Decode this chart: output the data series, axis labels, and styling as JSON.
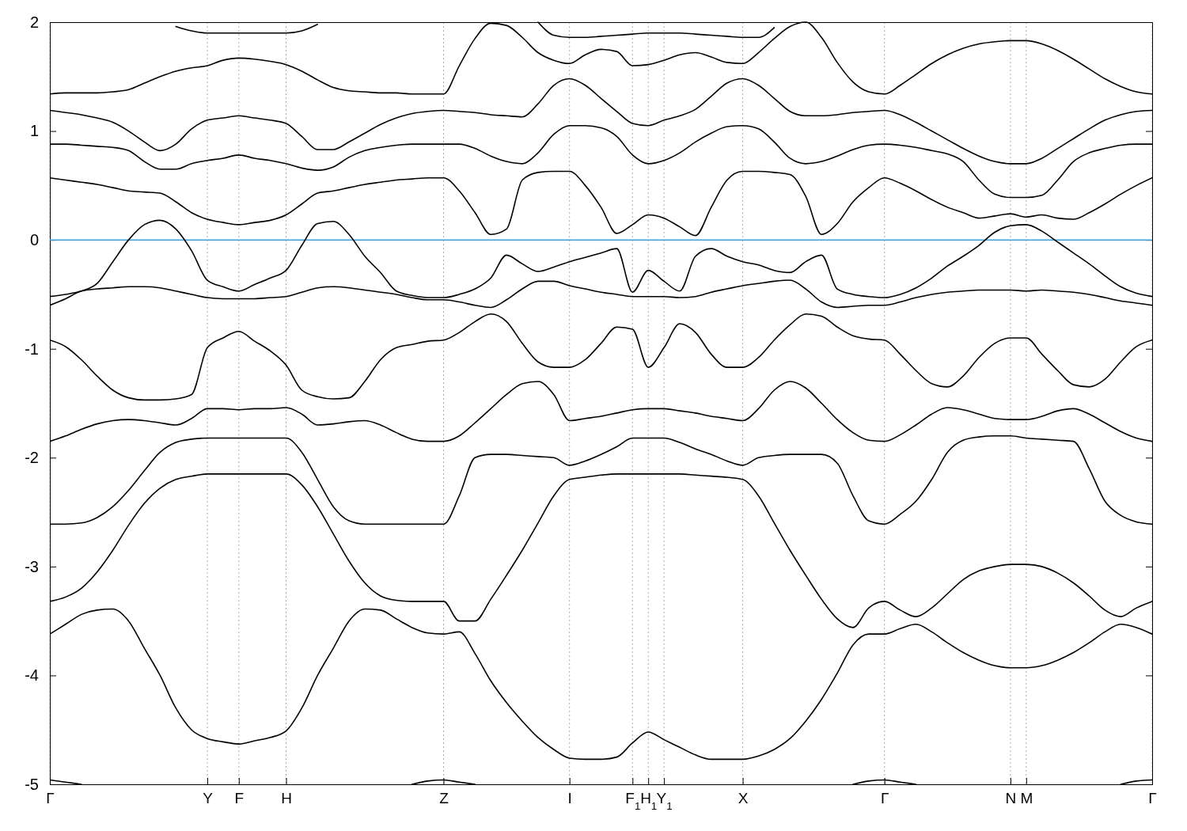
{
  "chart_data": {
    "type": "line",
    "ylim": [
      -5,
      2
    ],
    "yticks": [
      -5,
      -4,
      -3,
      -2,
      -1,
      0,
      1,
      2
    ],
    "categories": [
      "Γ",
      null,
      null,
      null,
      null,
      null,
      null,
      null,
      null,
      null,
      "Y",
      null,
      "F",
      null,
      null,
      "H",
      null,
      null,
      null,
      null,
      null,
      null,
      null,
      null,
      null,
      "Z",
      null,
      null,
      null,
      null,
      null,
      null,
      null,
      "I",
      null,
      null,
      null,
      "F$_{1}$",
      "H$_{1}$",
      "Y$_{1}$",
      null,
      null,
      null,
      null,
      "X",
      null,
      null,
      null,
      null,
      null,
      null,
      null,
      null,
      "Γ",
      null,
      null,
      null,
      null,
      null,
      null,
      null,
      "N",
      "M",
      null,
      null,
      null,
      null,
      null,
      null,
      null,
      "Γ"
    ],
    "grid": "x",
    "marker": "none",
    "line_style": "solid",
    "ref_lines": [
      {
        "axis": "y",
        "value": 0,
        "color": "#3d9fd6"
      }
    ],
    "series": [
      {
        "color": "#000000",
        "values": [
          -4.96,
          -4.98,
          -5.0,
          null,
          null,
          null,
          null,
          null,
          null,
          null,
          null,
          null,
          null,
          null,
          null,
          null,
          null,
          null,
          null,
          null,
          null,
          null,
          null,
          -5.0,
          -4.97,
          -4.96,
          -4.98,
          -5.0,
          null,
          null,
          null,
          null,
          null,
          null,
          null,
          null,
          null,
          null,
          null,
          null,
          null,
          null,
          null,
          null,
          null,
          null,
          null,
          null,
          null,
          null,
          null,
          -5.0,
          -4.97,
          -4.96,
          -4.98,
          -5.0,
          null,
          null,
          null,
          null,
          null,
          null,
          null,
          null,
          null,
          null,
          null,
          null,
          -5.0,
          -4.97,
          -4.96
        ]
      },
      {
        "color": "#000000",
        "values": [
          -3.62,
          -3.53,
          -3.44,
          -3.4,
          -3.39,
          -3.5,
          -3.75,
          -4.0,
          -4.3,
          -4.5,
          -4.58,
          -4.61,
          -4.63,
          -4.6,
          -4.57,
          -4.51,
          -4.3,
          -4.0,
          -3.75,
          -3.5,
          -3.39,
          -3.4,
          -3.48,
          -3.56,
          -3.61,
          -3.62,
          -3.6,
          -3.8,
          -4.05,
          -4.25,
          -4.42,
          -4.57,
          -4.68,
          -4.76,
          -4.77,
          -4.77,
          -4.75,
          -4.62,
          -4.52,
          -4.59,
          -4.66,
          -4.73,
          -4.77,
          -4.77,
          -4.77,
          -4.74,
          -4.68,
          -4.58,
          -4.42,
          -4.22,
          -3.98,
          -3.72,
          -3.62,
          -3.62,
          -3.57,
          -3.53,
          -3.6,
          -3.7,
          -3.79,
          -3.86,
          -3.91,
          -3.93,
          -3.93,
          -3.91,
          -3.86,
          -3.79,
          -3.7,
          -3.6,
          -3.53,
          -3.56,
          -3.62
        ]
      },
      {
        "color": "#000000",
        "values": [
          -3.32,
          -3.28,
          -3.2,
          -3.05,
          -2.85,
          -2.62,
          -2.42,
          -2.28,
          -2.2,
          -2.17,
          -2.15,
          -2.15,
          -2.15,
          -2.15,
          -2.15,
          -2.15,
          -2.25,
          -2.45,
          -2.7,
          -2.95,
          -3.15,
          -3.27,
          -3.31,
          -3.32,
          -3.32,
          -3.32,
          -3.5,
          -3.5,
          -3.3,
          -3.08,
          -2.85,
          -2.6,
          -2.35,
          -2.2,
          -2.18,
          -2.16,
          -2.15,
          -2.15,
          -2.15,
          -2.15,
          -2.15,
          -2.16,
          -2.17,
          -2.18,
          -2.2,
          -2.35,
          -2.6,
          -2.85,
          -3.08,
          -3.3,
          -3.48,
          -3.56,
          -3.38,
          -3.32,
          -3.4,
          -3.46,
          -3.38,
          -3.25,
          -3.12,
          -3.04,
          -3.0,
          -2.98,
          -2.98,
          -3.0,
          -3.06,
          -3.15,
          -3.27,
          -3.4,
          -3.46,
          -3.38,
          -3.32
        ]
      },
      {
        "color": "#000000",
        "values": [
          -2.61,
          -2.61,
          -2.6,
          -2.55,
          -2.45,
          -2.3,
          -2.12,
          -1.95,
          -1.86,
          -1.83,
          -1.82,
          -1.82,
          -1.82,
          -1.82,
          -1.82,
          -1.82,
          -1.95,
          -2.2,
          -2.45,
          -2.58,
          -2.61,
          -2.61,
          -2.61,
          -2.61,
          -2.61,
          -2.61,
          -2.35,
          -2.0,
          -1.97,
          -1.97,
          -1.98,
          -1.99,
          -2.0,
          -2.07,
          -2.03,
          -1.97,
          -1.9,
          -1.82,
          -1.82,
          -1.82,
          -1.86,
          -1.92,
          -1.97,
          -2.03,
          -2.07,
          -2.0,
          -1.98,
          -1.97,
          -1.97,
          -1.97,
          -2.05,
          -2.35,
          -2.58,
          -2.61,
          -2.52,
          -2.4,
          -2.2,
          -1.95,
          -1.84,
          -1.81,
          -1.8,
          -1.8,
          -1.82,
          -1.83,
          -1.84,
          -1.85,
          -2.1,
          -2.4,
          -2.53,
          -2.59,
          -2.61
        ]
      },
      {
        "color": "#000000",
        "values": [
          -1.85,
          -1.8,
          -1.74,
          -1.69,
          -1.66,
          -1.65,
          -1.66,
          -1.68,
          -1.7,
          -1.64,
          -1.55,
          -1.55,
          -1.56,
          -1.55,
          -1.55,
          -1.54,
          -1.6,
          -1.7,
          -1.69,
          -1.67,
          -1.66,
          -1.7,
          -1.77,
          -1.83,
          -1.85,
          -1.85,
          -1.8,
          -1.68,
          -1.55,
          -1.42,
          -1.32,
          -1.3,
          -1.42,
          -1.66,
          -1.64,
          -1.62,
          -1.59,
          -1.56,
          -1.55,
          -1.55,
          -1.57,
          -1.59,
          -1.62,
          -1.64,
          -1.66,
          -1.55,
          -1.38,
          -1.3,
          -1.36,
          -1.5,
          -1.65,
          -1.77,
          -1.84,
          -1.85,
          -1.79,
          -1.7,
          -1.6,
          -1.54,
          -1.56,
          -1.6,
          -1.64,
          -1.65,
          -1.65,
          -1.62,
          -1.57,
          -1.55,
          -1.6,
          -1.68,
          -1.76,
          -1.82,
          -1.85
        ]
      },
      {
        "color": "#000000",
        "values": [
          -0.92,
          -0.98,
          -1.1,
          -1.25,
          -1.38,
          -1.45,
          -1.47,
          -1.47,
          -1.46,
          -1.42,
          -0.99,
          -0.9,
          -0.84,
          -0.93,
          -1.02,
          -1.15,
          -1.38,
          -1.44,
          -1.46,
          -1.45,
          -1.3,
          -1.1,
          -0.99,
          -0.96,
          -0.93,
          -0.92,
          -0.85,
          -0.75,
          -0.68,
          -0.75,
          -0.95,
          -1.12,
          -1.17,
          -1.17,
          -1.1,
          -0.95,
          -0.8,
          -0.82,
          -1.17,
          -0.99,
          -0.77,
          -0.85,
          -1.05,
          -1.17,
          -1.17,
          -1.08,
          -0.92,
          -0.78,
          -0.68,
          -0.7,
          -0.8,
          -0.88,
          -0.91,
          -0.92,
          -1.05,
          -1.2,
          -1.32,
          -1.35,
          -1.25,
          -1.08,
          -0.95,
          -0.9,
          -0.9,
          -1.05,
          -1.2,
          -1.33,
          -1.35,
          -1.28,
          -1.12,
          -0.98,
          -0.92
        ]
      },
      {
        "color": "#000000",
        "values": [
          -0.6,
          -0.54,
          -0.47,
          -0.45,
          -0.44,
          -0.43,
          -0.43,
          -0.44,
          -0.47,
          -0.5,
          -0.53,
          -0.54,
          -0.54,
          -0.54,
          -0.53,
          -0.52,
          -0.48,
          -0.44,
          -0.43,
          -0.44,
          -0.46,
          -0.48,
          -0.5,
          -0.53,
          -0.55,
          -0.55,
          -0.57,
          -0.6,
          -0.62,
          -0.55,
          -0.45,
          -0.38,
          -0.38,
          -0.42,
          -0.45,
          -0.48,
          -0.5,
          -0.52,
          -0.52,
          -0.52,
          -0.53,
          -0.52,
          -0.48,
          -0.45,
          -0.42,
          -0.4,
          -0.38,
          -0.37,
          -0.45,
          -0.57,
          -0.62,
          -0.61,
          -0.6,
          -0.6,
          -0.57,
          -0.53,
          -0.5,
          -0.48,
          -0.47,
          -0.46,
          -0.46,
          -0.46,
          -0.47,
          -0.46,
          -0.47,
          -0.48,
          -0.5,
          -0.53,
          -0.56,
          -0.58,
          -0.6
        ]
      },
      {
        "color": "#000000",
        "values": [
          -0.52,
          -0.5,
          -0.47,
          -0.4,
          -0.2,
          0.0,
          0.14,
          0.18,
          0.1,
          -0.1,
          -0.37,
          -0.43,
          -0.47,
          -0.41,
          -0.35,
          -0.28,
          -0.05,
          0.15,
          0.17,
          0.05,
          -0.15,
          -0.3,
          -0.47,
          -0.51,
          -0.53,
          -0.53,
          -0.5,
          -0.45,
          -0.35,
          -0.14,
          -0.22,
          -0.29,
          -0.25,
          -0.2,
          -0.16,
          -0.12,
          -0.08,
          -0.48,
          -0.28,
          -0.38,
          -0.47,
          -0.15,
          -0.08,
          -0.15,
          -0.2,
          -0.23,
          -0.28,
          -0.3,
          -0.2,
          -0.14,
          -0.45,
          -0.5,
          -0.52,
          -0.53,
          -0.5,
          -0.44,
          -0.35,
          -0.24,
          -0.15,
          -0.05,
          0.07,
          0.13,
          0.14,
          0.08,
          -0.02,
          -0.12,
          -0.22,
          -0.33,
          -0.43,
          -0.49,
          -0.52
        ]
      },
      {
        "color": "#000000",
        "values": [
          0.57,
          0.55,
          0.53,
          0.51,
          0.48,
          0.45,
          0.44,
          0.43,
          0.35,
          0.25,
          0.19,
          0.16,
          0.14,
          0.16,
          0.18,
          0.23,
          0.33,
          0.43,
          0.45,
          0.48,
          0.51,
          0.53,
          0.55,
          0.56,
          0.57,
          0.57,
          0.45,
          0.25,
          0.05,
          0.1,
          0.55,
          0.62,
          0.63,
          0.63,
          0.5,
          0.3,
          0.06,
          0.14,
          0.23,
          0.2,
          0.12,
          0.04,
          0.3,
          0.55,
          0.63,
          0.63,
          0.62,
          0.6,
          0.4,
          0.05,
          0.15,
          0.35,
          0.48,
          0.57,
          0.52,
          0.45,
          0.37,
          0.3,
          0.25,
          0.2,
          0.22,
          0.24,
          0.21,
          0.23,
          0.2,
          0.19,
          0.25,
          0.33,
          0.42,
          0.5,
          0.57
        ]
      },
      {
        "color": "#000000",
        "values": [
          0.88,
          0.88,
          0.87,
          0.86,
          0.85,
          0.82,
          0.72,
          0.65,
          0.65,
          0.7,
          0.73,
          0.75,
          0.78,
          0.75,
          0.73,
          0.7,
          0.66,
          0.64,
          0.67,
          0.76,
          0.82,
          0.85,
          0.87,
          0.88,
          0.88,
          0.88,
          0.88,
          0.84,
          0.77,
          0.72,
          0.7,
          0.8,
          0.97,
          1.05,
          1.05,
          1.03,
          0.95,
          0.78,
          0.7,
          0.73,
          0.8,
          0.9,
          0.98,
          1.04,
          1.05,
          1.02,
          0.9,
          0.75,
          0.7,
          0.72,
          0.77,
          0.83,
          0.87,
          0.88,
          0.87,
          0.85,
          0.82,
          0.79,
          0.72,
          0.55,
          0.42,
          0.39,
          0.39,
          0.41,
          0.55,
          0.72,
          0.8,
          0.84,
          0.87,
          0.88,
          0.88
        ]
      },
      {
        "color": "#000000",
        "values": [
          1.19,
          1.17,
          1.15,
          1.12,
          1.08,
          1.0,
          0.9,
          0.82,
          0.88,
          1.02,
          1.1,
          1.12,
          1.14,
          1.12,
          1.1,
          1.07,
          0.95,
          0.83,
          0.83,
          0.9,
          0.98,
          1.06,
          1.12,
          1.16,
          1.18,
          1.19,
          1.18,
          1.17,
          1.15,
          1.14,
          1.13,
          1.25,
          1.42,
          1.48,
          1.42,
          1.3,
          1.18,
          1.07,
          1.05,
          1.1,
          1.14,
          1.2,
          1.32,
          1.44,
          1.48,
          1.42,
          1.3,
          1.18,
          1.14,
          1.14,
          1.15,
          1.17,
          1.18,
          1.19,
          1.15,
          1.08,
          1.0,
          0.92,
          0.84,
          0.77,
          0.72,
          0.7,
          0.7,
          0.75,
          0.84,
          0.93,
          1.02,
          1.1,
          1.15,
          1.18,
          1.19
        ]
      },
      {
        "color": "#000000",
        "values": [
          1.34,
          1.35,
          1.35,
          1.35,
          1.36,
          1.38,
          1.44,
          1.5,
          1.55,
          1.58,
          1.6,
          1.65,
          1.67,
          1.66,
          1.64,
          1.61,
          1.55,
          1.47,
          1.4,
          1.37,
          1.36,
          1.35,
          1.35,
          1.34,
          1.34,
          1.34,
          1.6,
          1.85,
          1.99,
          1.97,
          1.86,
          1.72,
          1.65,
          1.62,
          1.7,
          1.75,
          1.73,
          1.6,
          1.61,
          1.65,
          1.7,
          1.72,
          1.68,
          1.63,
          1.62,
          1.72,
          1.85,
          1.96,
          2.0,
          1.86,
          1.63,
          1.45,
          1.36,
          1.34,
          1.42,
          1.52,
          1.62,
          1.7,
          1.76,
          1.8,
          1.82,
          1.83,
          1.83,
          1.8,
          1.74,
          1.66,
          1.57,
          1.48,
          1.41,
          1.36,
          1.34
        ]
      },
      {
        "color": "#000000",
        "values": [
          null,
          null,
          null,
          null,
          null,
          null,
          null,
          null,
          1.96,
          1.92,
          1.9,
          1.9,
          1.9,
          1.9,
          1.9,
          1.9,
          1.92,
          1.98,
          null,
          null,
          null,
          null,
          null,
          null,
          null,
          null,
          null,
          null,
          null,
          null,
          null,
          2.0,
          1.88,
          1.86,
          1.86,
          1.87,
          1.88,
          1.89,
          1.9,
          1.9,
          1.9,
          1.89,
          1.88,
          1.87,
          1.86,
          1.86,
          1.95,
          null,
          null,
          null,
          null,
          null,
          null,
          null,
          null,
          null,
          null,
          null,
          null,
          null,
          null,
          null,
          null,
          null,
          null,
          null,
          null,
          null,
          null,
          null,
          null
        ]
      }
    ]
  }
}
